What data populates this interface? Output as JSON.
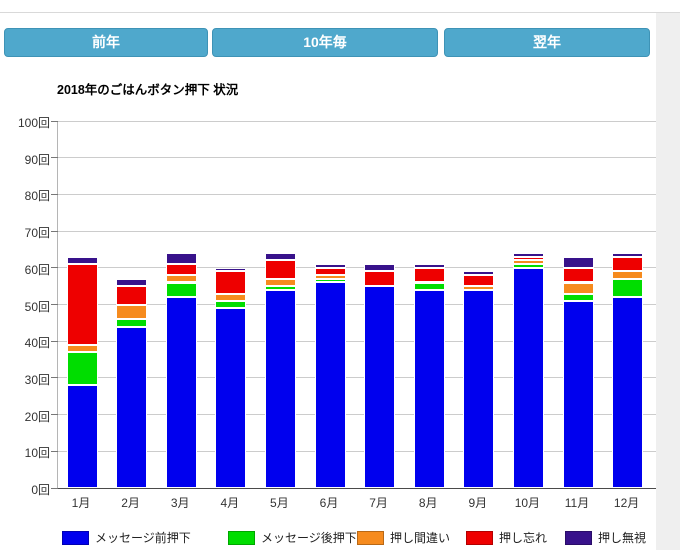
{
  "toolbar": {
    "buttons": [
      {
        "label": "前年"
      },
      {
        "label": "10年毎"
      },
      {
        "label": "翌年"
      }
    ],
    "button_color": "#4fa8cc"
  },
  "chart_data": {
    "type": "bar",
    "stacked": true,
    "title": "2018年のごはんボタン押下 状況",
    "categories": [
      "1月",
      "2月",
      "3月",
      "4月",
      "5月",
      "6月",
      "7月",
      "8月",
      "9月",
      "10月",
      "11月",
      "12月"
    ],
    "series": [
      {
        "name": "メッセージ前押下",
        "color": "#0000ee",
        "values": [
          28,
          44,
          52,
          49,
          54,
          56,
          55,
          54,
          54,
          60,
          51,
          52
        ]
      },
      {
        "name": "メッセージ後押下",
        "color": "#00dd00",
        "values": [
          9,
          2,
          4,
          2,
          1,
          1,
          0,
          2,
          0,
          1,
          2,
          5
        ]
      },
      {
        "name": "押し間違い",
        "color": "#f68b1e",
        "values": [
          2,
          4,
          2,
          2,
          2,
          1,
          0,
          0,
          1,
          1,
          3,
          2
        ]
      },
      {
        "name": "押し忘れ",
        "color": "#ee0000",
        "values": [
          22,
          5,
          3,
          6,
          5,
          2,
          4,
          4,
          3,
          1,
          4,
          4
        ]
      },
      {
        "name": "押し無視",
        "color": "#38128b",
        "values": [
          2,
          2,
          3,
          1,
          2,
          1,
          2,
          1,
          1,
          1,
          3,
          1
        ]
      }
    ],
    "yticks": [
      "0回",
      "10回",
      "20回",
      "30回",
      "40回",
      "50回",
      "60回",
      "70回",
      "80回",
      "90回",
      "100回"
    ],
    "ylim": [
      0,
      100
    ],
    "ytick_step": 10,
    "grid": true,
    "legend_position": "bottom"
  }
}
